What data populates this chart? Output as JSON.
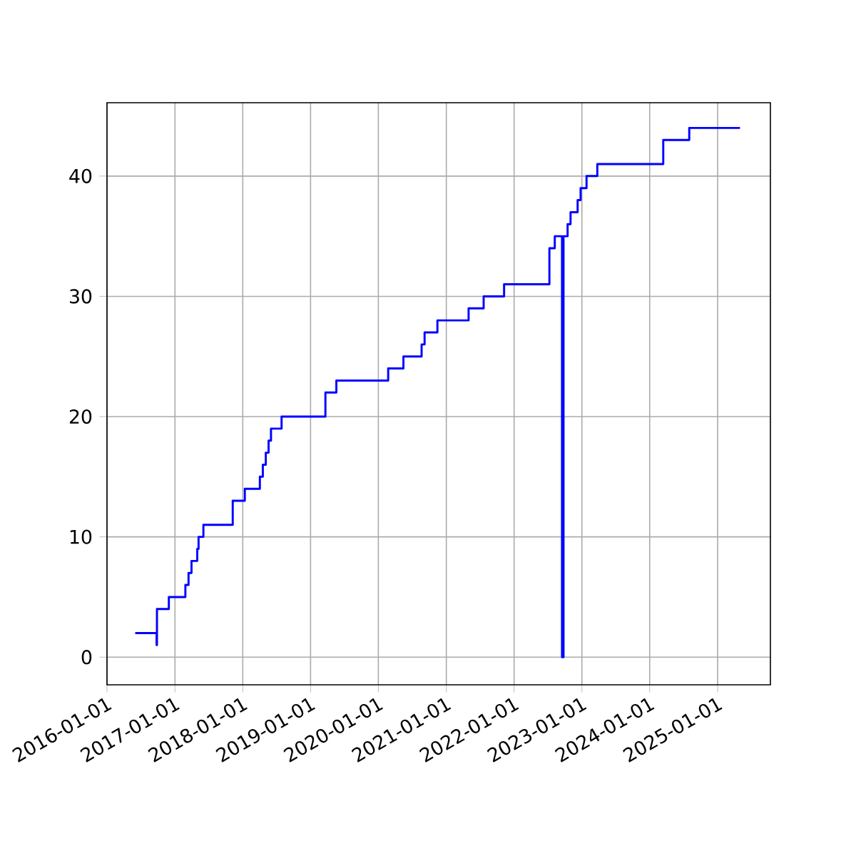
{
  "chart_data": {
    "type": "step",
    "x": [
      "2016-06-01",
      "2016-09-24",
      "2016-09-26",
      "2016-11-29",
      "2017-02-26",
      "2017-03-15",
      "2017-03-31",
      "2017-05-01",
      "2017-05-08",
      "2017-06-03",
      "2017-11-08",
      "2018-01-12",
      "2018-04-03",
      "2018-04-19",
      "2018-05-05",
      "2018-05-20",
      "2018-06-02",
      "2018-07-29",
      "2019-03-22",
      "2019-05-20",
      "2020-02-23",
      "2020-05-15",
      "2020-08-21",
      "2020-09-06",
      "2020-11-14",
      "2021-05-01",
      "2021-07-21",
      "2021-11-08",
      "2022-07-10",
      "2022-08-08",
      "2022-09-16",
      "2022-09-24",
      "2022-10-16",
      "2022-11-01",
      "2022-12-09",
      "2022-12-25",
      "2023-01-26",
      "2023-03-25",
      "2024-03-14",
      "2024-08-01",
      "2025-05-01"
    ],
    "series": [
      {
        "color": "#0000ff",
        "values": [
          2,
          1,
          4,
          5,
          6,
          7,
          8,
          9,
          10,
          11,
          13,
          14,
          15,
          16,
          17,
          18,
          19,
          20,
          22,
          23,
          24,
          25,
          26,
          27,
          28,
          29,
          30,
          31,
          34,
          35,
          0,
          35,
          36,
          37,
          38,
          39,
          40,
          41,
          43,
          44,
          44
        ]
      }
    ],
    "xlim": [
      "2016-01-01",
      "2025-10-12"
    ],
    "xticks": [
      "2016-01-01",
      "2017-01-01",
      "2018-01-01",
      "2019-01-01",
      "2020-01-01",
      "2021-01-01",
      "2022-01-01",
      "2023-01-01",
      "2024-01-01",
      "2025-01-01"
    ],
    "ylim": [
      -2.3,
      46.1
    ],
    "yticks": [
      0,
      10,
      20,
      30,
      40
    ],
    "grid": true,
    "line_style": "solid"
  }
}
